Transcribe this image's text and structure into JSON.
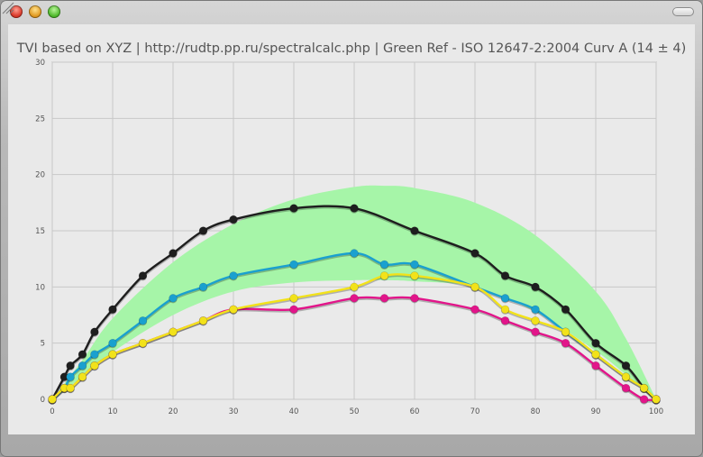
{
  "window": {
    "controls": [
      "close-button",
      "minimize-button",
      "zoom-button"
    ]
  },
  "chart_data": {
    "type": "line",
    "title": "TVI based on XYZ | http://rudtp.pp.ru/spectralcalc.php | Green Ref - ISO 12647-2:2004 Curv A (14 ± 4)",
    "xlabel": "",
    "ylabel": "",
    "xlim": [
      0,
      100
    ],
    "ylim": [
      0,
      30
    ],
    "xticks": [
      0,
      10,
      20,
      30,
      40,
      50,
      60,
      70,
      80,
      90,
      100
    ],
    "yticks": [
      0,
      5,
      10,
      15,
      20,
      25,
      30
    ],
    "grid": true,
    "band": {
      "color": "#a6f5a8",
      "x": [
        0,
        5,
        10,
        20,
        30,
        40,
        50,
        55,
        60,
        70,
        80,
        90,
        95,
        100
      ],
      "upper": [
        0,
        3.5,
        7.2,
        12.2,
        15.6,
        17.8,
        18.9,
        19.0,
        18.8,
        17.5,
        14.6,
        9.6,
        5.4,
        0
      ],
      "lower": [
        0,
        2.0,
        4.2,
        7.5,
        9.6,
        10.4,
        10.6,
        10.6,
        10.5,
        10.0,
        7.8,
        4.3,
        2.2,
        0
      ]
    },
    "series": [
      {
        "color": "#1e1e1e",
        "x": [
          0,
          2,
          3,
          5,
          7,
          10,
          15,
          20,
          25,
          30,
          40,
          50,
          60,
          70,
          75,
          80,
          85,
          90,
          95,
          98,
          100
        ],
        "y": [
          0,
          2,
          3,
          4,
          6,
          8,
          11,
          13,
          15,
          16,
          17,
          17,
          15,
          13,
          11,
          10,
          8,
          5,
          3,
          1,
          0
        ]
      },
      {
        "color": "#1aa0cf",
        "x": [
          0,
          2,
          3,
          5,
          7,
          10,
          15,
          20,
          25,
          30,
          40,
          50,
          55,
          60,
          70,
          75,
          80,
          85,
          90,
          95,
          98,
          100
        ],
        "y": [
          0,
          1,
          2,
          3,
          4,
          5,
          7,
          9,
          10,
          11,
          12,
          13,
          12,
          12,
          10,
          9,
          8,
          6,
          4,
          2,
          1,
          0
        ]
      },
      {
        "color": "#e2158a",
        "x": [
          0,
          2,
          3,
          5,
          7,
          10,
          15,
          20,
          25,
          30,
          40,
          50,
          55,
          60,
          70,
          75,
          80,
          85,
          90,
          95,
          98,
          100
        ],
        "y": [
          0,
          1,
          1,
          2,
          3,
          4,
          5,
          6,
          7,
          8,
          8,
          9,
          9,
          9,
          8,
          7,
          6,
          5,
          3,
          1,
          0,
          0
        ]
      },
      {
        "color": "#f2e21a",
        "x": [
          0,
          2,
          3,
          5,
          7,
          10,
          15,
          20,
          25,
          30,
          40,
          50,
          55,
          60,
          70,
          75,
          80,
          85,
          90,
          95,
          98,
          100
        ],
        "y": [
          0,
          1,
          1,
          2,
          3,
          4,
          5,
          6,
          7,
          8,
          9,
          10,
          11,
          11,
          10,
          8,
          7,
          6,
          4,
          2,
          1,
          0
        ]
      }
    ]
  }
}
